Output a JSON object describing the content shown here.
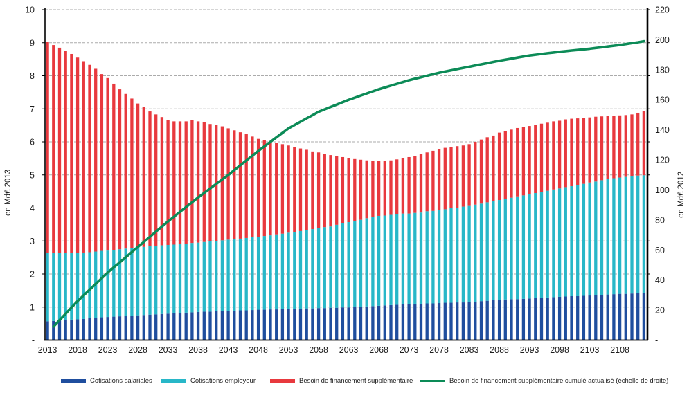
{
  "chart_data": {
    "type": "bar",
    "subtype": "stacked-bars-with-secondary-axis-line",
    "title": "",
    "grid": true,
    "legend_position": "bottom",
    "left_axis": {
      "title": "en Md€ 2013",
      "min": 0,
      "max": 10,
      "step": 1,
      "zero_label": "-"
    },
    "right_axis": {
      "title": "en Md€ 2012",
      "min": 0,
      "max": 220,
      "step": 20,
      "zero_label": "-"
    },
    "x_axis": {
      "first_year": 2013,
      "last_year": 2112,
      "tick_years": [
        2013,
        2018,
        2023,
        2028,
        2033,
        2038,
        2043,
        2048,
        2053,
        2058,
        2063,
        2068,
        2073,
        2078,
        2083,
        2088,
        2093,
        2098,
        2103,
        2108
      ]
    },
    "years": [
      2013,
      2014,
      2015,
      2016,
      2017,
      2018,
      2019,
      2020,
      2021,
      2022,
      2023,
      2024,
      2025,
      2026,
      2027,
      2028,
      2029,
      2030,
      2031,
      2032,
      2033,
      2034,
      2035,
      2036,
      2037,
      2038,
      2039,
      2040,
      2041,
      2042,
      2043,
      2044,
      2045,
      2046,
      2047,
      2048,
      2049,
      2050,
      2051,
      2052,
      2053,
      2054,
      2055,
      2056,
      2057,
      2058,
      2059,
      2060,
      2061,
      2062,
      2063,
      2064,
      2065,
      2066,
      2067,
      2068,
      2069,
      2070,
      2071,
      2072,
      2073,
      2074,
      2075,
      2076,
      2077,
      2078,
      2079,
      2080,
      2081,
      2082,
      2083,
      2084,
      2085,
      2086,
      2087,
      2088,
      2089,
      2090,
      2091,
      2092,
      2093,
      2094,
      2095,
      2096,
      2097,
      2098,
      2099,
      2100,
      2101,
      2102,
      2103,
      2104,
      2105,
      2106,
      2107,
      2108,
      2109,
      2110,
      2111,
      2112
    ],
    "series": [
      {
        "name": "Cotisations salariales",
        "kind": "bar-stacked",
        "axis": "left",
        "color": "#1F4E9E",
        "values": [
          0.57,
          0.58,
          0.59,
          0.61,
          0.62,
          0.63,
          0.64,
          0.66,
          0.67,
          0.69,
          0.7,
          0.71,
          0.72,
          0.73,
          0.74,
          0.75,
          0.76,
          0.77,
          0.78,
          0.79,
          0.8,
          0.81,
          0.82,
          0.83,
          0.84,
          0.85,
          0.86,
          0.86,
          0.87,
          0.88,
          0.88,
          0.89,
          0.9,
          0.9,
          0.91,
          0.92,
          0.92,
          0.93,
          0.93,
          0.94,
          0.94,
          0.95,
          0.95,
          0.96,
          0.96,
          0.97,
          0.97,
          0.98,
          0.98,
          0.99,
          0.99,
          1.0,
          1.01,
          1.02,
          1.03,
          1.04,
          1.05,
          1.06,
          1.07,
          1.08,
          1.09,
          1.1,
          1.1,
          1.11,
          1.11,
          1.12,
          1.13,
          1.13,
          1.14,
          1.14,
          1.15,
          1.16,
          1.18,
          1.19,
          1.21,
          1.22,
          1.23,
          1.24,
          1.24,
          1.25,
          1.26,
          1.27,
          1.28,
          1.29,
          1.3,
          1.31,
          1.32,
          1.33,
          1.33,
          1.34,
          1.35,
          1.36,
          1.37,
          1.38,
          1.39,
          1.4,
          1.4,
          1.41,
          1.42,
          1.42
        ]
      },
      {
        "name": "Cotisations employeur",
        "kind": "bar-stacked",
        "axis": "left",
        "color": "#28B7C8",
        "values": [
          2.06,
          2.05,
          2.04,
          2.02,
          2.02,
          2.01,
          2.01,
          2.0,
          2.01,
          2.01,
          2.01,
          2.02,
          2.03,
          2.04,
          2.05,
          2.06,
          2.06,
          2.07,
          2.07,
          2.08,
          2.08,
          2.08,
          2.09,
          2.09,
          2.1,
          2.1,
          2.11,
          2.13,
          2.13,
          2.14,
          2.16,
          2.17,
          2.17,
          2.19,
          2.2,
          2.21,
          2.23,
          2.24,
          2.27,
          2.28,
          2.31,
          2.32,
          2.35,
          2.38,
          2.4,
          2.42,
          2.45,
          2.46,
          2.51,
          2.54,
          2.58,
          2.6,
          2.63,
          2.67,
          2.7,
          2.72,
          2.72,
          2.73,
          2.74,
          2.75,
          2.74,
          2.75,
          2.76,
          2.79,
          2.8,
          2.82,
          2.83,
          2.86,
          2.87,
          2.9,
          2.91,
          2.94,
          2.95,
          2.98,
          2.99,
          3.02,
          3.05,
          3.07,
          3.11,
          3.13,
          3.16,
          3.18,
          3.21,
          3.23,
          3.26,
          3.28,
          3.31,
          3.33,
          3.37,
          3.39,
          3.42,
          3.44,
          3.47,
          3.49,
          3.51,
          3.52,
          3.54,
          3.55,
          3.56,
          3.57
        ]
      },
      {
        "name": "Besoin de financement supplémentaire",
        "kind": "bar-stacked",
        "axis": "left",
        "color": "#E8393E",
        "values": [
          6.4,
          6.3,
          6.22,
          6.13,
          6.02,
          5.91,
          5.79,
          5.67,
          5.53,
          5.35,
          5.22,
          5.03,
          4.84,
          4.68,
          4.52,
          4.35,
          4.24,
          4.08,
          3.98,
          3.88,
          3.78,
          3.73,
          3.71,
          3.7,
          3.71,
          3.67,
          3.62,
          3.55,
          3.52,
          3.45,
          3.37,
          3.29,
          3.22,
          3.14,
          3.05,
          2.96,
          2.9,
          2.82,
          2.76,
          2.71,
          2.64,
          2.57,
          2.5,
          2.42,
          2.35,
          2.29,
          2.22,
          2.16,
          2.08,
          2.01,
          1.94,
          1.88,
          1.82,
          1.75,
          1.7,
          1.66,
          1.66,
          1.65,
          1.66,
          1.67,
          1.71,
          1.73,
          1.77,
          1.78,
          1.82,
          1.84,
          1.86,
          1.86,
          1.86,
          1.85,
          1.87,
          1.9,
          1.94,
          1.97,
          1.99,
          2.04,
          2.04,
          2.06,
          2.07,
          2.08,
          2.06,
          2.06,
          2.06,
          2.06,
          2.06,
          2.05,
          2.05,
          2.04,
          2.01,
          2.0,
          1.97,
          1.96,
          1.93,
          1.91,
          1.89,
          1.88,
          1.87,
          1.87,
          1.9,
          1.94
        ]
      },
      {
        "name": "Besoin de financement supplémentaire cumulé actualisé (échelle de droite)",
        "kind": "line",
        "axis": "right",
        "color": "#0C8B57",
        "values": [
          null,
          9,
          13.3,
          17.5,
          21.8,
          26,
          29.8,
          33.6,
          37.4,
          41.2,
          45,
          48.4,
          51.8,
          55.2,
          58.6,
          62,
          65.4,
          68.8,
          72.2,
          75.6,
          79,
          82.2,
          85.4,
          88.6,
          91.8,
          95,
          98,
          101,
          104,
          107,
          110,
          113.2,
          116.4,
          119.6,
          122.8,
          126,
          129,
          132,
          135,
          138,
          141,
          143.2,
          145.4,
          147.6,
          149.8,
          152,
          153.6,
          155.2,
          156.8,
          158.4,
          160,
          161.4,
          162.8,
          164.2,
          165.6,
          167,
          168.2,
          169.4,
          170.6,
          171.8,
          173,
          174,
          175,
          176,
          177,
          178,
          178.8,
          179.6,
          180.4,
          181.2,
          182,
          182.8,
          183.6,
          184.4,
          185.2,
          186,
          186.7,
          187.4,
          188.1,
          188.8,
          189.5,
          190,
          190.5,
          191,
          191.5,
          192,
          192.4,
          192.8,
          193.2,
          193.6,
          194,
          194.5,
          195,
          195.5,
          196,
          196.5,
          197.1,
          197.7,
          198.3,
          199
        ]
      }
    ],
    "colors": {
      "gridline": "#ABABAB",
      "axis_line": "#000000",
      "tick_text": "#1d1d1d"
    }
  }
}
